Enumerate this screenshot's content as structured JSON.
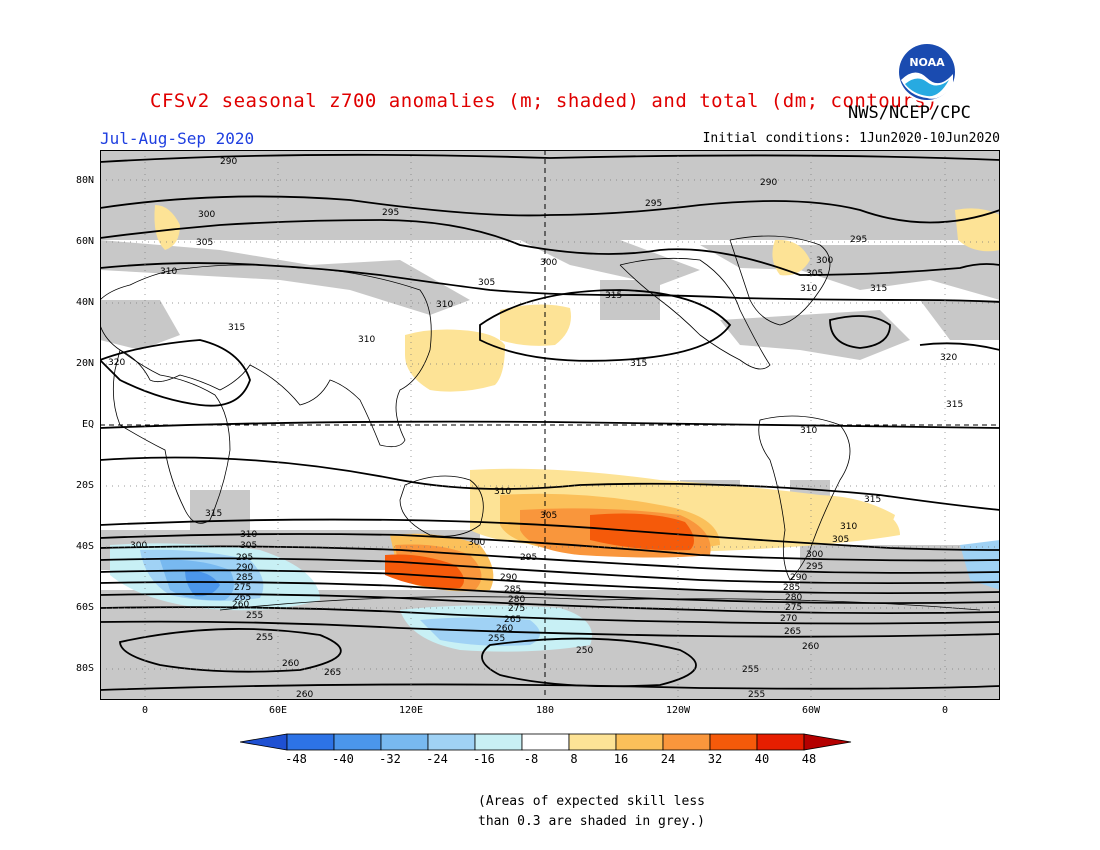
{
  "header": {
    "title": "CFSv2 seasonal z700 anomalies (m; shaded) and total (dm; contours)",
    "agency": "NWS/NCEP/CPC",
    "period": "Jul-Aug-Sep 2020",
    "initial_conditions": "Initial conditions: 1Jun2020-10Jun2020",
    "logo_text": "NOAA"
  },
  "map": {
    "lat_labels": [
      "80N",
      "60N",
      "40N",
      "20N",
      "EQ",
      "20S",
      "40S",
      "60S",
      "80S"
    ],
    "lon_labels": [
      "0",
      "60E",
      "120E",
      "180",
      "120W",
      "60W",
      "0"
    ],
    "contour_labels": [
      "290",
      "300",
      "305",
      "310",
      "315",
      "320",
      "295",
      "285",
      "280",
      "275",
      "270",
      "265",
      "260",
      "255",
      "250"
    ],
    "colors": {
      "skill_grey": "#c8c8c8",
      "neg_8": "#c8f0f5",
      "neg_16": "#a0d2f5",
      "neg_24": "#78b9f0",
      "neg_32": "#4b96eb",
      "pos_8": "#fde396",
      "pos_16": "#fbc05a",
      "pos_24": "#f9963c",
      "pos_32": "#f55a0a"
    }
  },
  "colorbar": {
    "labels": [
      "-48",
      "-40",
      "-32",
      "-24",
      "-16",
      "-8",
      "8",
      "16",
      "24",
      "32",
      "40",
      "48"
    ],
    "colors": [
      "#1e50d2",
      "#2d73e6",
      "#4b96eb",
      "#78b9f0",
      "#a0d2f5",
      "#c8f0f5",
      "#ffffff",
      "#fde396",
      "#fbc05a",
      "#f9963c",
      "#f55a0a",
      "#e61e00",
      "#b40000"
    ]
  },
  "note": {
    "line1": "(Areas of expected skill less",
    "line2": "than 0.3 are shaded in grey.)"
  }
}
